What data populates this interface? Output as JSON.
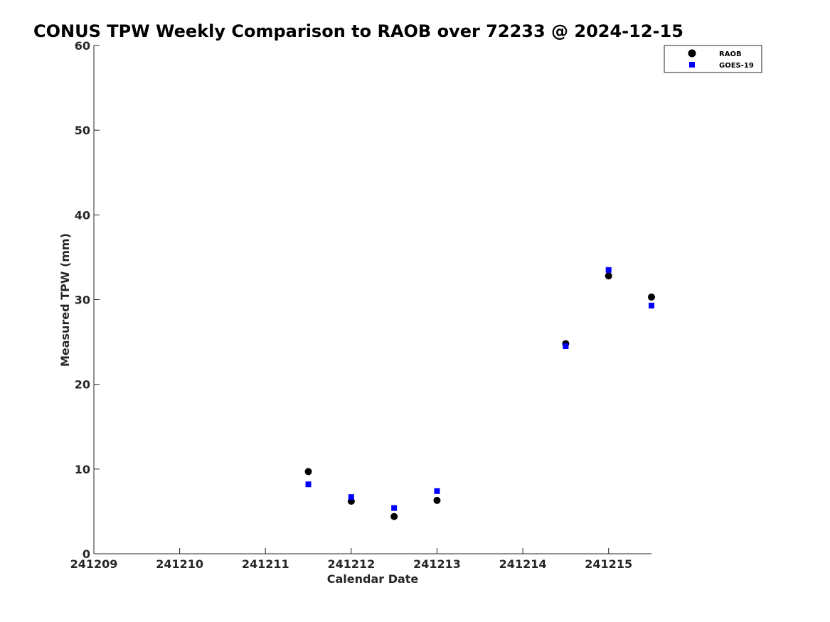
{
  "chart_data": {
    "type": "scatter",
    "title": "CONUS TPW Weekly Comparison to RAOB over 72233 @ 2024-12-15",
    "xlabel": "Calendar Date",
    "ylabel": "Measured TPW (mm)",
    "xlim": [
      241209,
      241215.5
    ],
    "ylim": [
      0,
      60
    ],
    "x_ticks": [
      "241209",
      "241210",
      "241211",
      "241212",
      "241213",
      "241214",
      "241215"
    ],
    "y_ticks": [
      "0",
      "10",
      "20",
      "30",
      "40",
      "50",
      "60"
    ],
    "grid": false,
    "legend_position": "top-right",
    "series": [
      {
        "name": "RAOB",
        "marker": "circle",
        "color": "#000000",
        "points": [
          {
            "x": 241211.5,
            "y": 9.7
          },
          {
            "x": 241212.0,
            "y": 6.2
          },
          {
            "x": 241212.5,
            "y": 4.4
          },
          {
            "x": 241213.0,
            "y": 6.3
          },
          {
            "x": 241214.5,
            "y": 24.8
          },
          {
            "x": 241215.0,
            "y": 32.8
          },
          {
            "x": 241215.5,
            "y": 30.3
          }
        ]
      },
      {
        "name": "GOES-19",
        "marker": "square",
        "color": "#0000ff",
        "points": [
          {
            "x": 241211.5,
            "y": 8.2
          },
          {
            "x": 241212.0,
            "y": 6.7
          },
          {
            "x": 241212.5,
            "y": 5.4
          },
          {
            "x": 241213.0,
            "y": 7.4
          },
          {
            "x": 241214.5,
            "y": 24.5
          },
          {
            "x": 241215.0,
            "y": 33.5
          },
          {
            "x": 241215.5,
            "y": 29.3
          }
        ]
      }
    ]
  }
}
